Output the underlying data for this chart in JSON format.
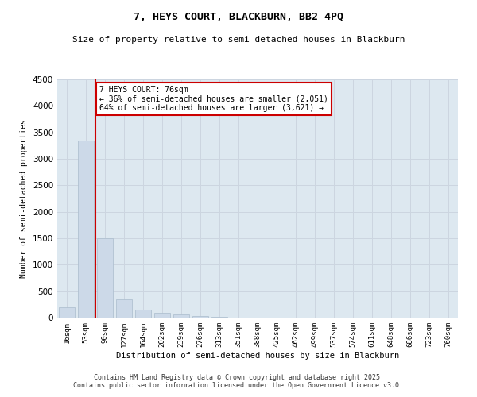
{
  "title1": "7, HEYS COURT, BLACKBURN, BB2 4PQ",
  "title2": "Size of property relative to semi-detached houses in Blackburn",
  "xlabel": "Distribution of semi-detached houses by size in Blackburn",
  "ylabel": "Number of semi-detached properties",
  "categories": [
    "16sqm",
    "53sqm",
    "90sqm",
    "127sqm",
    "164sqm",
    "202sqm",
    "239sqm",
    "276sqm",
    "313sqm",
    "351sqm",
    "388sqm",
    "425sqm",
    "462sqm",
    "499sqm",
    "537sqm",
    "574sqm",
    "611sqm",
    "648sqm",
    "686sqm",
    "723sqm",
    "760sqm"
  ],
  "values": [
    200,
    3350,
    1500,
    350,
    150,
    90,
    60,
    30,
    15,
    5,
    0,
    0,
    0,
    0,
    0,
    0,
    0,
    0,
    0,
    0,
    0
  ],
  "bar_color": "#ccd9e8",
  "bar_edge_color": "#aabccc",
  "grid_color": "#ccd5e0",
  "background_color": "#dde8f0",
  "red_line_x": 1.5,
  "annotation_title": "7 HEYS COURT: 76sqm",
  "annotation_line1": "← 36% of semi-detached houses are smaller (2,051)",
  "annotation_line2": "64% of semi-detached houses are larger (3,621) →",
  "annotation_box_color": "#ffffff",
  "annotation_box_edge": "#cc0000",
  "red_line_color": "#cc0000",
  "footer1": "Contains HM Land Registry data © Crown copyright and database right 2025.",
  "footer2": "Contains public sector information licensed under the Open Government Licence v3.0.",
  "ylim": [
    0,
    4500
  ],
  "yticks": [
    0,
    500,
    1000,
    1500,
    2000,
    2500,
    3000,
    3500,
    4000,
    4500
  ]
}
